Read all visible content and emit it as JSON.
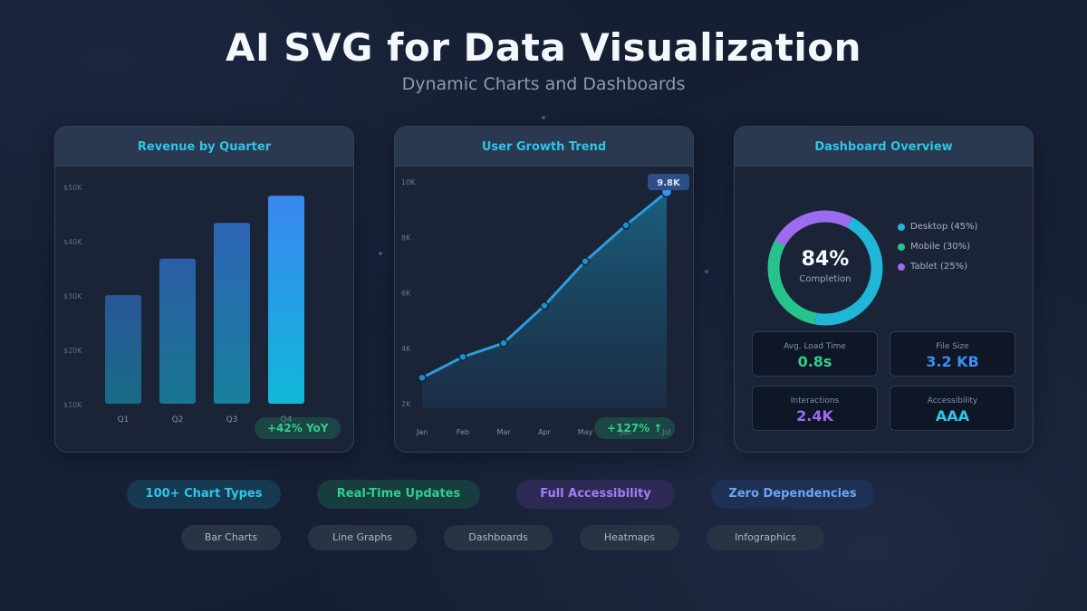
{
  "header": {
    "title": "AI SVG for Data Visualization",
    "subtitle": "Dynamic Charts and Dashboards"
  },
  "cards": {
    "revenue": {
      "title": "Revenue by Quarter",
      "badge": "+42% YoY"
    },
    "growth": {
      "title": "User Growth Trend",
      "badge": "+127% ↑"
    },
    "dashboard": {
      "title": "Dashboard Overview",
      "completion_value": "84%",
      "completion_label": "Completion",
      "legend": [
        {
          "label": "Desktop (45%)",
          "color": "#1fb6d8"
        },
        {
          "label": "Mobile (30%)",
          "color": "#26c48c"
        },
        {
          "label": "Tablet (25%)",
          "color": "#9b6cf0"
        }
      ],
      "stats": [
        {
          "label": "Avg. Load Time",
          "value": "0.8s",
          "color": "#2fd08c"
        },
        {
          "label": "File Size",
          "value": "3.2 KB",
          "color": "#3b8ff5"
        },
        {
          "label": "Interactions",
          "value": "2.4K",
          "color": "#9b6cf0"
        },
        {
          "label": "Accessibility",
          "value": "AAA",
          "color": "#2ec5e6"
        }
      ]
    }
  },
  "chart_data": [
    {
      "type": "bar",
      "title": "Revenue by Quarter",
      "categories": [
        "Q1",
        "Q2",
        "Q3",
        "Q4"
      ],
      "values": [
        30000,
        36700,
        43300,
        48300
      ],
      "ylim": [
        10000,
        50000
      ],
      "yticks": [
        "$50K",
        "$40K",
        "$30K",
        "$20K",
        "$10K"
      ],
      "grid": false
    },
    {
      "type": "area",
      "title": "User Growth Trend",
      "categories": [
        "Jan",
        "Feb",
        "Mar",
        "Apr",
        "May",
        "Jun",
        "Jul"
      ],
      "values": [
        3100,
        3850,
        4350,
        5700,
        7300,
        8600,
        9800
      ],
      "ylim": [
        2000,
        10000
      ],
      "yticks": [
        "10K",
        "8K",
        "6K",
        "4K",
        "2K"
      ],
      "callout": "9.8K",
      "grid": false
    },
    {
      "type": "pie",
      "title": "Dashboard Overview",
      "categories": [
        "Desktop",
        "Mobile",
        "Tablet"
      ],
      "values": [
        45,
        30,
        25
      ],
      "center_label": "84%"
    }
  ],
  "features": [
    {
      "label": "100+ Chart Types",
      "color": "#2ec5e6",
      "bg": "#173a52"
    },
    {
      "label": "Real-Time Updates",
      "color": "#2fd08c",
      "bg": "#173d3f"
    },
    {
      "label": "Full Accessibility",
      "color": "#a37cf4",
      "bg": "#2c2a55"
    },
    {
      "label": "Zero Dependencies",
      "color": "#6aa5f5",
      "bg": "#1f3055"
    }
  ],
  "tags": [
    "Bar Charts",
    "Line Graphs",
    "Dashboards",
    "Heatmaps",
    "Infographics"
  ]
}
